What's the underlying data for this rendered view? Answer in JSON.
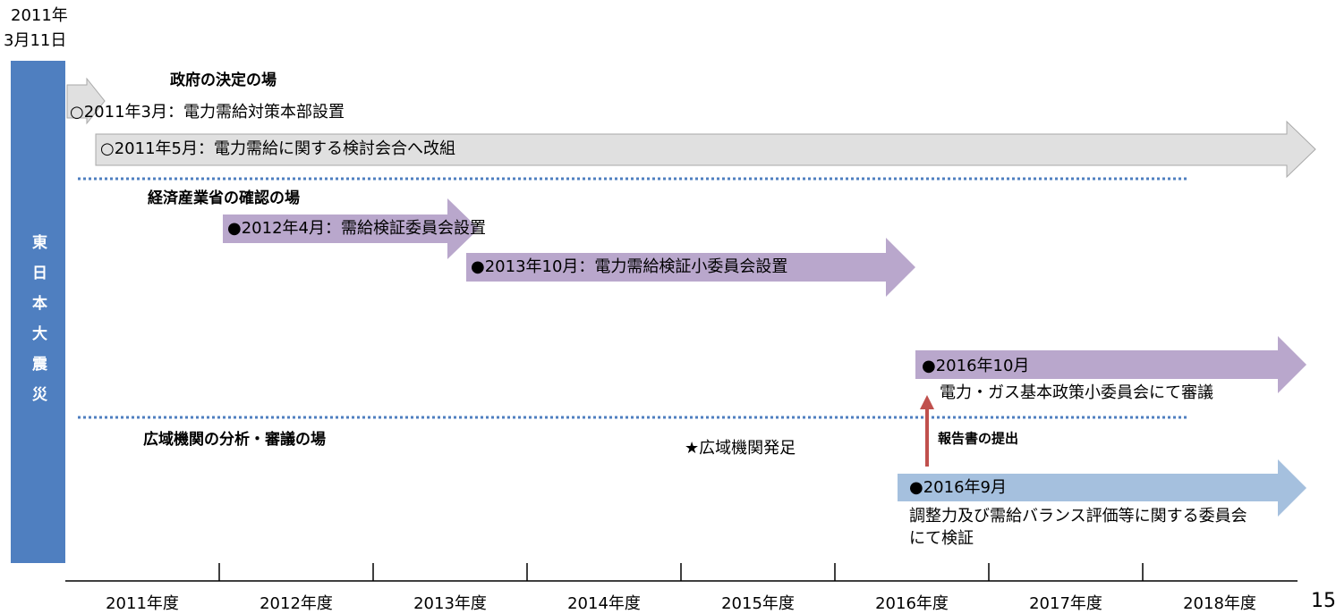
{
  "header": {
    "date_lines": [
      "2011年",
      "3月11日"
    ]
  },
  "side_label": "東日本大震災",
  "sections": {
    "government": "政府の決定の場",
    "meti": "経済産業省の確認の場",
    "occto": "広域機関の分析・審議の場"
  },
  "events": {
    "e1": "○2011年3月：電力需給対策本部設置",
    "e2": "○2011年5月：電力需給に関する検討会合へ改組",
    "e3": "●2012年4月：需給検証委員会設置",
    "e4": "●2013年10月：電力需給検証小委員会設置",
    "e5": [
      "●2016年10月",
      "電力・ガス基本政策小委員会にて審議"
    ],
    "e6": [
      "●2016年9月",
      "調整力及び需給バランス評価等に関する委員会",
      "にて検証"
    ],
    "founding": "★広域機関発足",
    "report": "報告書の提出"
  },
  "axis": {
    "years": [
      "2011年度",
      "2012年度",
      "2013年度",
      "2014年度",
      "2015年度",
      "2016年度",
      "2017年度",
      "2018年度"
    ]
  },
  "page_number": "15"
}
